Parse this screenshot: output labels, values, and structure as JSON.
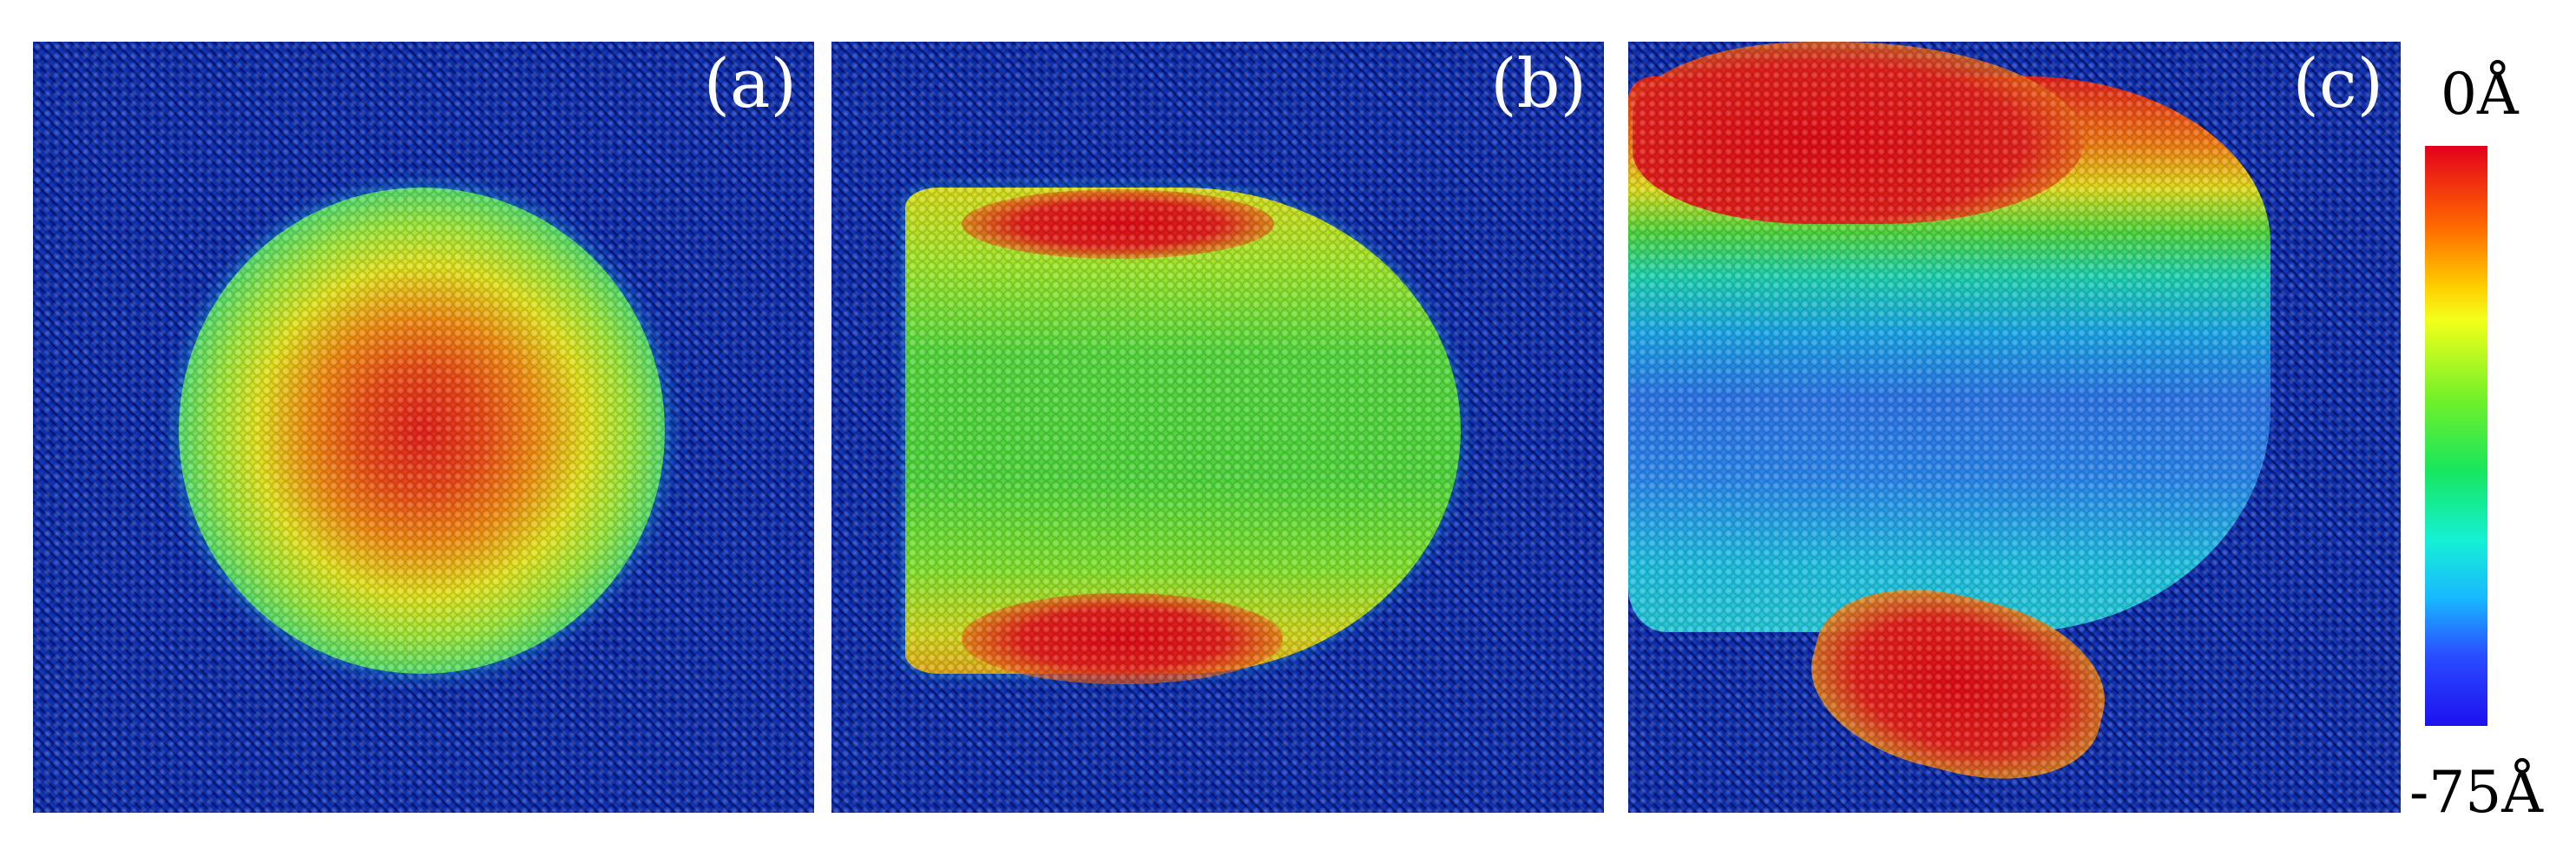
{
  "panels": [
    {
      "label": "(a)"
    },
    {
      "label": "(b)"
    },
    {
      "label": "(c)"
    }
  ],
  "scale": {
    "top": "0Å",
    "bottom": "-75Å",
    "colors": [
      "#e3001b",
      "#ff6a00",
      "#f4ff1a",
      "#17e65d",
      "#16f0d6",
      "#2a4cff",
      "#1d10f0"
    ]
  },
  "colors": {
    "substrate": "#0a2fb4",
    "peak": "#e3001b",
    "mid": "#17e65d",
    "low": "#18b8ff"
  }
}
